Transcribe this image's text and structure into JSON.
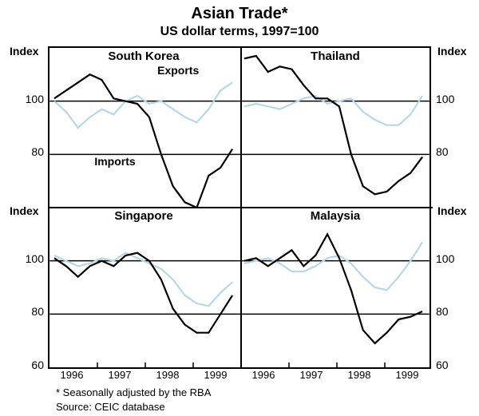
{
  "title": "Asian Trade*",
  "subtitle": "US dollar terms, 1997=100",
  "footnote1": "*   Seasonally adjusted by the RBA",
  "footnote2": "Source:   CEIC database",
  "axis_title": "Index",
  "colors": {
    "exports": "#b4d8e7",
    "imports": "#000000",
    "grid": "#000000",
    "background": "#ffffff"
  },
  "line_width": 2.2,
  "xlim": [
    1995.5,
    1999.5
  ],
  "xticks": [
    1996,
    1997,
    1998,
    1999
  ],
  "top_ylim": [
    60,
    120
  ],
  "top_yticks": [
    80,
    100
  ],
  "bottom_ylim": [
    60,
    120
  ],
  "bottom_yticks": [
    60,
    80,
    100
  ],
  "label_fontsize": 14,
  "panels": {
    "south_korea": {
      "title": "South Korea",
      "position": "tl",
      "exports_label": "Exports",
      "imports_label": "Imports",
      "exports": {
        "x": [
          1995.6,
          1995.85,
          1996.1,
          1996.35,
          1996.6,
          1996.85,
          1997.1,
          1997.35,
          1997.6,
          1997.85,
          1998.1,
          1998.35,
          1998.6,
          1998.85,
          1999.1,
          1999.35
        ],
        "y": [
          100,
          96,
          90,
          94,
          97,
          95,
          100,
          102,
          99,
          100,
          97,
          94,
          92,
          97,
          104,
          107
        ]
      },
      "imports": {
        "x": [
          1995.6,
          1995.85,
          1996.1,
          1996.35,
          1996.6,
          1996.85,
          1997.1,
          1997.35,
          1997.6,
          1997.85,
          1998.1,
          1998.35,
          1998.6,
          1998.85,
          1999.1,
          1999.35
        ],
        "y": [
          101,
          104,
          107,
          110,
          108,
          101,
          100,
          99,
          94,
          80,
          68,
          62,
          60,
          72,
          75,
          82
        ]
      }
    },
    "thailand": {
      "title": "Thailand",
      "position": "tr",
      "exports": {
        "x": [
          1995.6,
          1995.85,
          1996.1,
          1996.35,
          1996.6,
          1996.85,
          1997.1,
          1997.35,
          1997.6,
          1997.85,
          1998.1,
          1998.35,
          1998.6,
          1998.85,
          1999.1,
          1999.35
        ],
        "y": [
          98,
          99,
          98,
          97,
          99,
          101,
          102,
          99,
          100,
          101,
          96,
          93,
          91,
          91,
          95,
          102
        ]
      },
      "imports": {
        "x": [
          1995.6,
          1995.85,
          1996.1,
          1996.35,
          1996.6,
          1996.85,
          1997.1,
          1997.35,
          1997.6,
          1997.85,
          1998.1,
          1998.35,
          1998.6,
          1998.85,
          1999.1,
          1999.35
        ],
        "y": [
          116,
          117,
          111,
          113,
          112,
          106,
          101,
          101,
          98,
          80,
          68,
          65,
          66,
          70,
          73,
          79
        ]
      }
    },
    "singapore": {
      "title": "Singapore",
      "position": "bl",
      "exports": {
        "x": [
          1995.6,
          1995.85,
          1996.1,
          1996.35,
          1996.6,
          1996.85,
          1997.1,
          1997.35,
          1997.6,
          1997.85,
          1998.1,
          1998.35,
          1998.6,
          1998.85,
          1999.1,
          1999.35
        ],
        "y": [
          102,
          100,
          98,
          99,
          101,
          100,
          103,
          101,
          99,
          97,
          93,
          87,
          84,
          83,
          88,
          92
        ]
      },
      "imports": {
        "x": [
          1995.6,
          1995.85,
          1996.1,
          1996.35,
          1996.6,
          1996.85,
          1997.1,
          1997.35,
          1997.6,
          1997.85,
          1998.1,
          1998.35,
          1998.6,
          1998.85,
          1999.1,
          1999.35
        ],
        "y": [
          101,
          98,
          94,
          98,
          100,
          98,
          102,
          103,
          100,
          93,
          82,
          76,
          73,
          73,
          80,
          87
        ]
      }
    },
    "malaysia": {
      "title": "Malaysia",
      "position": "br",
      "exports": {
        "x": [
          1995.6,
          1995.85,
          1996.1,
          1996.35,
          1996.6,
          1996.85,
          1997.1,
          1997.35,
          1997.6,
          1997.85,
          1998.1,
          1998.35,
          1998.6,
          1998.85,
          1999.1,
          1999.35
        ],
        "y": [
          99,
          100,
          101,
          99,
          96,
          96,
          98,
          101,
          102,
          99,
          94,
          90,
          89,
          94,
          100,
          107
        ]
      },
      "imports": {
        "x": [
          1995.6,
          1995.85,
          1996.1,
          1996.35,
          1996.6,
          1996.85,
          1997.1,
          1997.35,
          1997.6,
          1997.85,
          1998.1,
          1998.35,
          1998.6,
          1998.85,
          1999.1,
          1999.35
        ],
        "y": [
          100,
          101,
          98,
          101,
          104,
          98,
          102,
          110,
          101,
          89,
          74,
          69,
          73,
          78,
          79,
          81
        ]
      }
    }
  }
}
